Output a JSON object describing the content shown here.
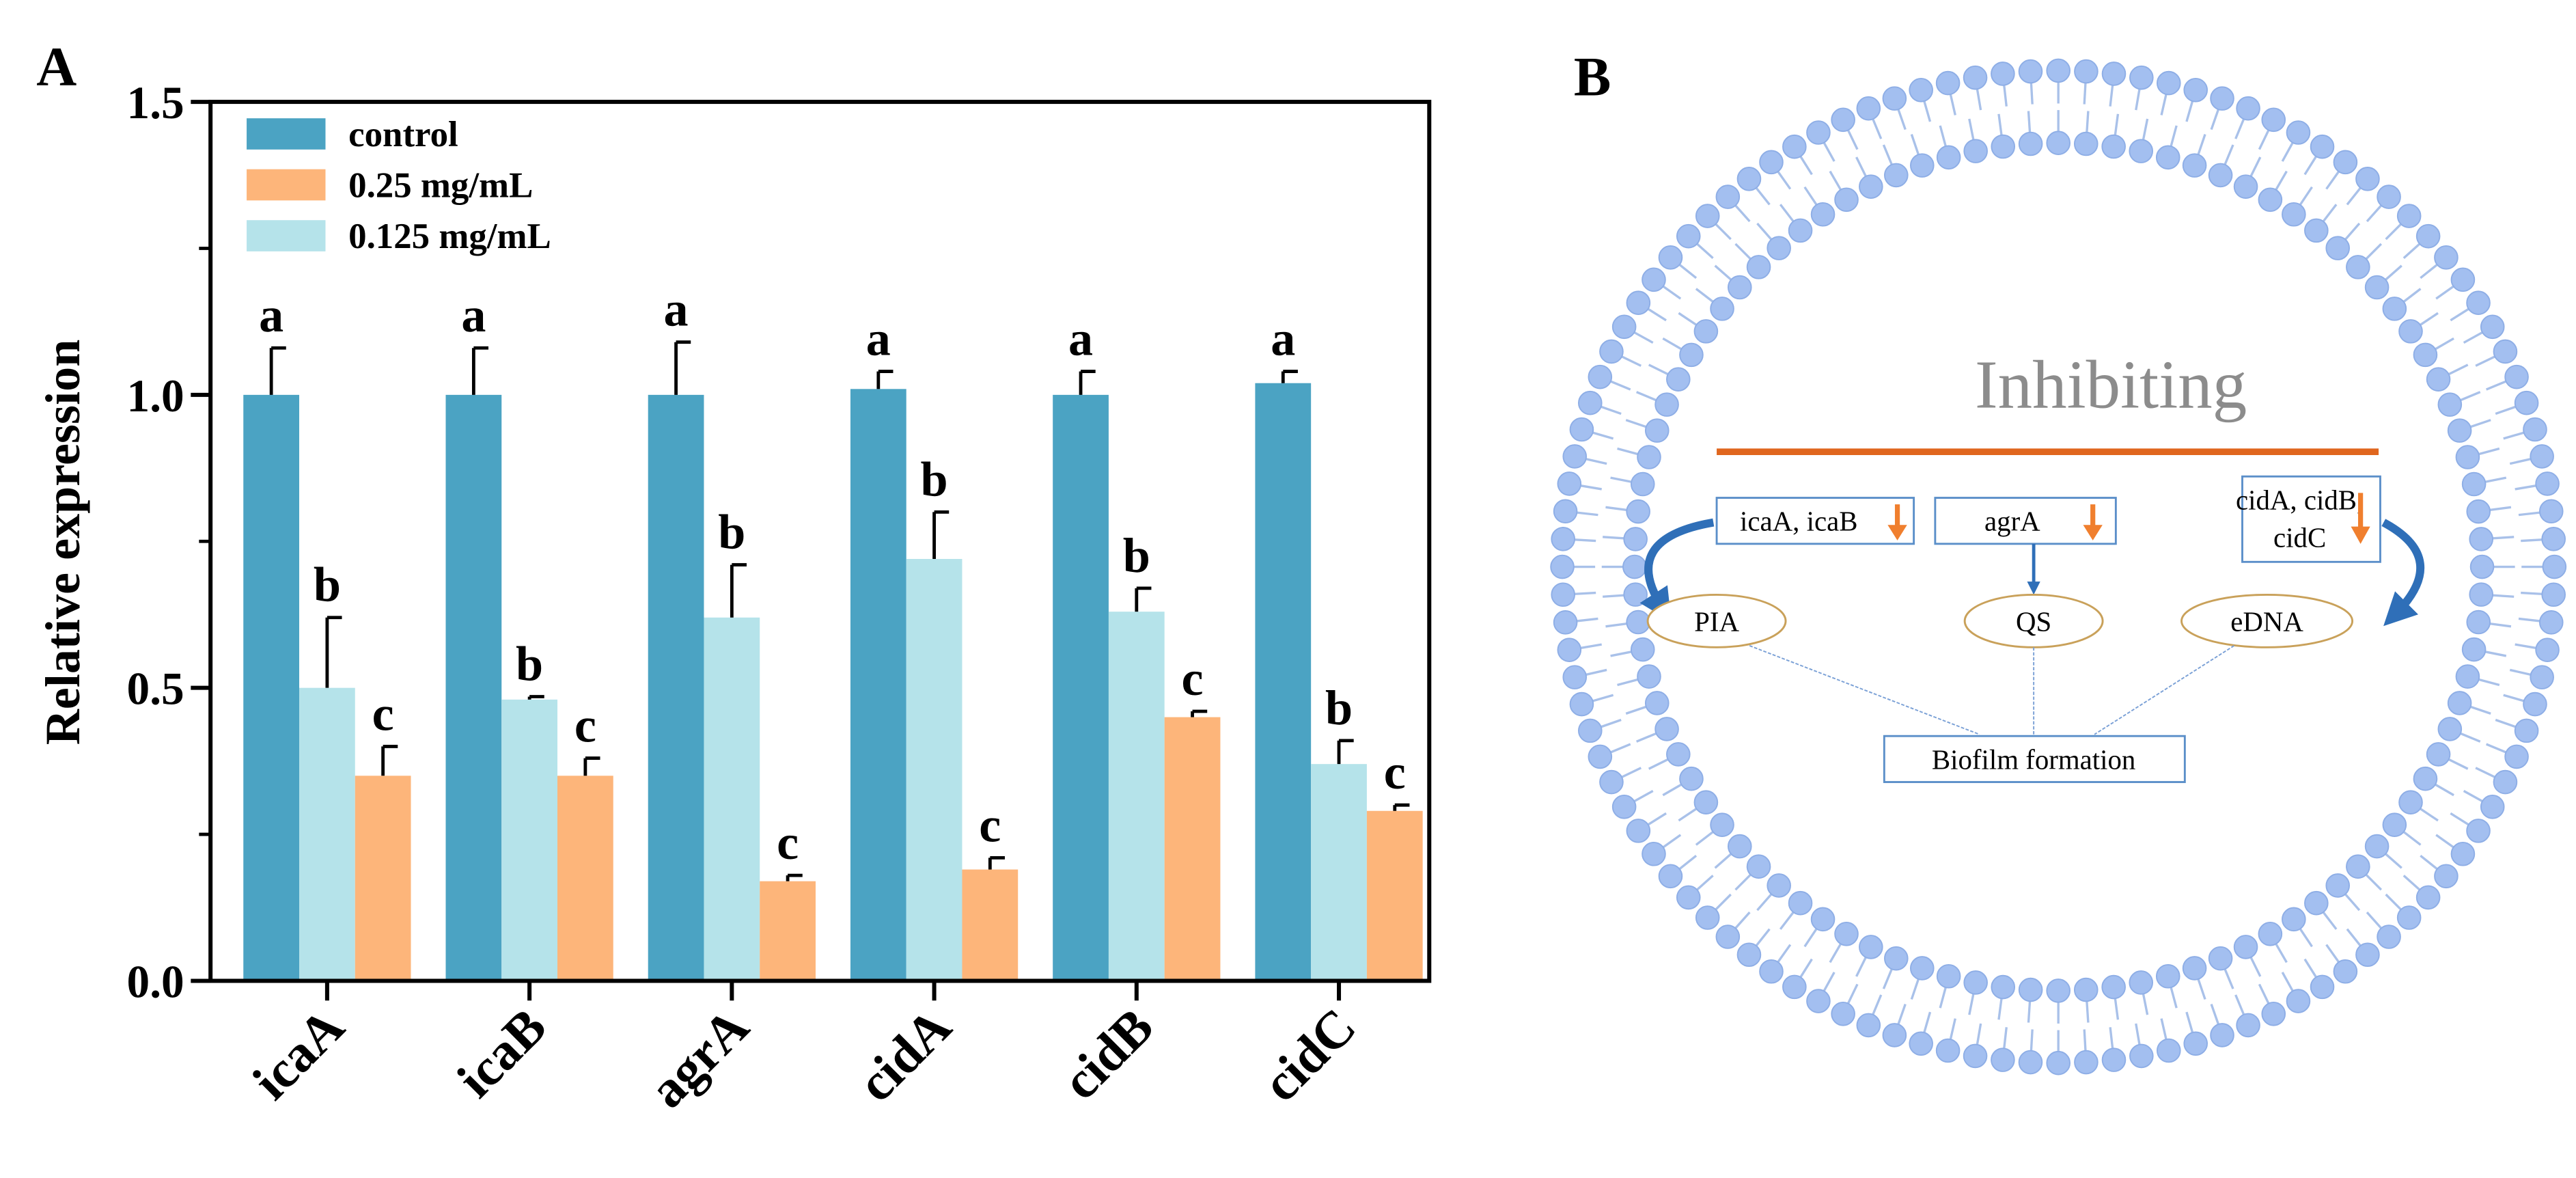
{
  "chart_data": {
    "type": "bar",
    "panel": "A",
    "y_label": "Relative expression",
    "categories": [
      "icaA",
      "icaB",
      "agrA",
      "cidA",
      "cidB",
      "cidC"
    ],
    "series": [
      {
        "name": "control",
        "color": "#4ba3c3",
        "values": [
          1.0,
          1.0,
          1.0,
          1.01,
          1.0,
          1.02
        ],
        "errors": [
          0.08,
          0.08,
          0.09,
          0.03,
          0.04,
          0.02
        ],
        "significance": [
          "a",
          "a",
          "a",
          "a",
          "a",
          "a"
        ]
      },
      {
        "name": "0.25 mg/mL",
        "color": "#fdb57a",
        "values": [
          0.35,
          0.35,
          0.17,
          0.19,
          0.45,
          0.29
        ],
        "errors": [
          0.05,
          0.03,
          0.01,
          0.02,
          0.01,
          0.01
        ],
        "significance": [
          "c",
          "c",
          "c",
          "c",
          "c",
          "c"
        ]
      },
      {
        "name": "0.125 mg/mL",
        "color": "#b5e3ea",
        "values": [
          0.5,
          0.48,
          0.62,
          0.72,
          0.63,
          0.37
        ],
        "errors": [
          0.12,
          0.005,
          0.09,
          0.08,
          0.04,
          0.04
        ],
        "significance": [
          "b",
          "b",
          "b",
          "b",
          "b",
          "b"
        ]
      }
    ],
    "ylim": [
      0,
      1.5
    ],
    "yticks": [
      {
        "value": 0,
        "label": "0.0"
      },
      0.5,
      {
        "value": 1,
        "label": "1.0"
      },
      1.5
    ],
    "yminor": [
      0.25,
      0.75,
      1.25
    ],
    "legend": "upper left"
  },
  "diagram": {
    "panel": "B",
    "title": "Inhibiting",
    "genes": [
      [
        "icaA, icaB"
      ],
      [
        "agrA"
      ],
      [
        "cidA, cidB,",
        "cidC"
      ]
    ],
    "nodes": [
      "PIA",
      "QS",
      "eDNA"
    ],
    "output": "Biofilm formation"
  }
}
